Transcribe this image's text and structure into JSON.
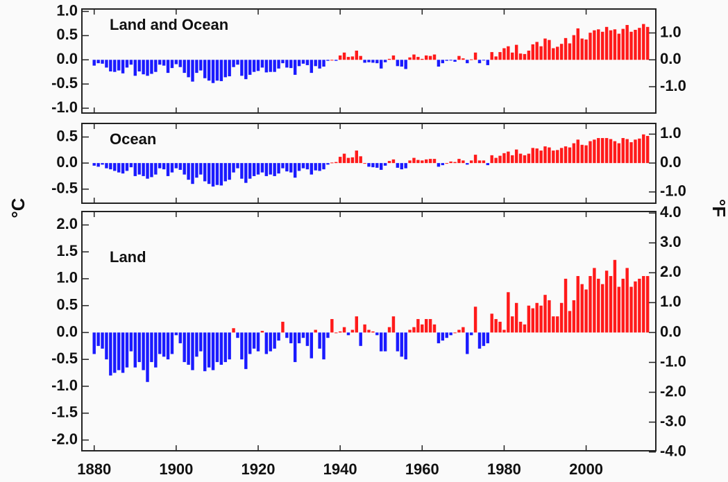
{
  "chart_data": [
    {
      "type": "bar",
      "label": "Land and Ocean",
      "x": [
        1880,
        1881,
        1882,
        1883,
        1884,
        1885,
        1886,
        1887,
        1888,
        1889,
        1890,
        1891,
        1892,
        1893,
        1894,
        1895,
        1896,
        1897,
        1898,
        1899,
        1900,
        1901,
        1902,
        1903,
        1904,
        1905,
        1906,
        1907,
        1908,
        1909,
        1910,
        1911,
        1912,
        1913,
        1914,
        1915,
        1916,
        1917,
        1918,
        1919,
        1920,
        1921,
        1922,
        1923,
        1924,
        1925,
        1926,
        1927,
        1928,
        1929,
        1930,
        1931,
        1932,
        1933,
        1934,
        1935,
        1936,
        1937,
        1938,
        1939,
        1940,
        1941,
        1942,
        1943,
        1944,
        1945,
        1946,
        1947,
        1948,
        1949,
        1950,
        1951,
        1952,
        1953,
        1954,
        1955,
        1956,
        1957,
        1958,
        1959,
        1960,
        1961,
        1962,
        1963,
        1964,
        1965,
        1966,
        1967,
        1968,
        1969,
        1970,
        1971,
        1972,
        1973,
        1974,
        1975,
        1976,
        1977,
        1978,
        1979,
        1980,
        1981,
        1982,
        1983,
        1984,
        1985,
        1986,
        1987,
        1988,
        1989,
        1990,
        1991,
        1992,
        1993,
        1994,
        1995,
        1996,
        1997,
        1998,
        1999,
        2000,
        2001,
        2002,
        2003,
        2004,
        2005,
        2006,
        2007,
        2008,
        2009,
        2010,
        2011,
        2012,
        2013,
        2014,
        2015
      ],
      "values": [
        -0.12,
        -0.07,
        -0.08,
        -0.16,
        -0.24,
        -0.25,
        -0.22,
        -0.28,
        -0.16,
        -0.1,
        -0.33,
        -0.24,
        -0.3,
        -0.33,
        -0.29,
        -0.25,
        -0.1,
        -0.12,
        -0.27,
        -0.17,
        -0.09,
        -0.15,
        -0.27,
        -0.36,
        -0.45,
        -0.27,
        -0.22,
        -0.38,
        -0.43,
        -0.48,
        -0.43,
        -0.44,
        -0.36,
        -0.34,
        -0.15,
        -0.1,
        -0.33,
        -0.4,
        -0.31,
        -0.25,
        -0.23,
        -0.16,
        -0.26,
        -0.25,
        -0.25,
        -0.18,
        -0.07,
        -0.16,
        -0.17,
        -0.31,
        -0.13,
        -0.08,
        -0.11,
        -0.27,
        -0.13,
        -0.18,
        -0.14,
        -0.02,
        0.0,
        -0.02,
        0.09,
        0.15,
        0.06,
        0.07,
        0.19,
        0.08,
        -0.06,
        -0.05,
        -0.06,
        -0.07,
        -0.18,
        -0.05,
        0.02,
        0.09,
        -0.13,
        -0.14,
        -0.19,
        0.05,
        0.11,
        0.06,
        0.02,
        0.09,
        0.08,
        0.11,
        -0.14,
        -0.07,
        -0.02,
        -0.01,
        -0.04,
        0.08,
        0.03,
        -0.07,
        0.01,
        0.15,
        -0.07,
        -0.01,
        -0.11,
        0.16,
        0.07,
        0.16,
        0.24,
        0.28,
        0.15,
        0.31,
        0.13,
        0.12,
        0.19,
        0.32,
        0.37,
        0.28,
        0.44,
        0.41,
        0.24,
        0.27,
        0.33,
        0.45,
        0.34,
        0.51,
        0.65,
        0.44,
        0.42,
        0.56,
        0.61,
        0.63,
        0.58,
        0.68,
        0.61,
        0.63,
        0.54,
        0.64,
        0.72,
        0.58,
        0.62,
        0.66,
        0.74,
        0.68
      ],
      "positive_color": "#ff1a1a",
      "negative_color": "#1a1aff",
      "xlim": [
        1877,
        2017
      ],
      "ylim": [
        -1.1,
        1.05
      ],
      "y2lim": [
        -1.98,
        1.89
      ],
      "yticks": [
        {
          "value": 1.0,
          "label": "1.0"
        },
        {
          "value": 0.5,
          "label": "0.5"
        },
        {
          "value": 0.0,
          "label": "0.0"
        },
        {
          "value": -0.5,
          "label": "-0.5"
        },
        {
          "value": -1.0,
          "label": "-1.0"
        }
      ],
      "y2ticks": [
        {
          "value": 1.0,
          "label": "1.0"
        },
        {
          "value": 0.0,
          "label": "0.0"
        },
        {
          "value": -1.0,
          "label": "-1.0"
        }
      ]
    },
    {
      "type": "bar",
      "label": "Ocean",
      "ylabel": "°C",
      "y2label": "°F",
      "x": [
        1880,
        1881,
        1882,
        1883,
        1884,
        1885,
        1886,
        1887,
        1888,
        1889,
        1890,
        1891,
        1892,
        1893,
        1894,
        1895,
        1896,
        1897,
        1898,
        1899,
        1900,
        1901,
        1902,
        1903,
        1904,
        1905,
        1906,
        1907,
        1908,
        1909,
        1910,
        1911,
        1912,
        1913,
        1914,
        1915,
        1916,
        1917,
        1918,
        1919,
        1920,
        1921,
        1922,
        1923,
        1924,
        1925,
        1926,
        1927,
        1928,
        1929,
        1930,
        1931,
        1932,
        1933,
        1934,
        1935,
        1936,
        1937,
        1938,
        1939,
        1940,
        1941,
        1942,
        1943,
        1944,
        1945,
        1946,
        1947,
        1948,
        1949,
        1950,
        1951,
        1952,
        1953,
        1954,
        1955,
        1956,
        1957,
        1958,
        1959,
        1960,
        1961,
        1962,
        1963,
        1964,
        1965,
        1966,
        1967,
        1968,
        1969,
        1970,
        1971,
        1972,
        1973,
        1974,
        1975,
        1976,
        1977,
        1978,
        1979,
        1980,
        1981,
        1982,
        1983,
        1984,
        1985,
        1986,
        1987,
        1988,
        1989,
        1990,
        1991,
        1992,
        1993,
        1994,
        1995,
        1996,
        1997,
        1998,
        1999,
        2000,
        2001,
        2002,
        2003,
        2004,
        2005,
        2006,
        2007,
        2008,
        2009,
        2010,
        2011,
        2012,
        2013,
        2014,
        2015
      ],
      "values": [
        -0.05,
        -0.07,
        -0.03,
        -0.1,
        -0.12,
        -0.15,
        -0.18,
        -0.2,
        -0.15,
        -0.08,
        -0.25,
        -0.22,
        -0.25,
        -0.3,
        -0.27,
        -0.22,
        -0.1,
        -0.12,
        -0.25,
        -0.18,
        -0.1,
        -0.13,
        -0.22,
        -0.32,
        -0.4,
        -0.28,
        -0.22,
        -0.35,
        -0.4,
        -0.45,
        -0.42,
        -0.43,
        -0.35,
        -0.32,
        -0.18,
        -0.1,
        -0.3,
        -0.38,
        -0.3,
        -0.25,
        -0.22,
        -0.18,
        -0.25,
        -0.22,
        -0.25,
        -0.2,
        -0.1,
        -0.16,
        -0.18,
        -0.28,
        -0.15,
        -0.1,
        -0.12,
        -0.22,
        -0.14,
        -0.15,
        -0.12,
        -0.03,
        0.01,
        0.02,
        0.12,
        0.18,
        0.1,
        0.11,
        0.24,
        0.13,
        0.0,
        -0.07,
        -0.08,
        -0.09,
        -0.13,
        -0.05,
        0.04,
        0.07,
        -0.09,
        -0.12,
        -0.1,
        0.05,
        0.1,
        0.06,
        0.05,
        0.07,
        0.08,
        0.08,
        -0.07,
        -0.04,
        0.0,
        0.03,
        0.02,
        0.08,
        0.05,
        -0.03,
        0.05,
        0.16,
        0.05,
        0.05,
        -0.04,
        0.15,
        0.1,
        0.14,
        0.19,
        0.22,
        0.15,
        0.26,
        0.18,
        0.15,
        0.18,
        0.29,
        0.28,
        0.24,
        0.32,
        0.3,
        0.24,
        0.25,
        0.29,
        0.32,
        0.3,
        0.38,
        0.45,
        0.35,
        0.34,
        0.42,
        0.45,
        0.48,
        0.48,
        0.48,
        0.46,
        0.42,
        0.38,
        0.48,
        0.46,
        0.4,
        0.45,
        0.47,
        0.55,
        0.52
      ],
      "positive_color": "#ff1a1a",
      "negative_color": "#1a1aff",
      "xlim": [
        1877,
        2017
      ],
      "ylim": [
        -0.77,
        0.76
      ],
      "y2lim": [
        -1.39,
        1.37
      ],
      "yticks": [
        {
          "value": 0.5,
          "label": "0.5"
        },
        {
          "value": 0.0,
          "label": "0.0"
        },
        {
          "value": -0.5,
          "label": "-0.5"
        }
      ],
      "y2ticks": [
        {
          "value": 1.0,
          "label": "1.0"
        },
        {
          "value": 0.0,
          "label": "0.0"
        },
        {
          "value": -1.0,
          "label": "-1.0"
        }
      ]
    },
    {
      "type": "bar",
      "label": "Land",
      "x": [
        1880,
        1881,
        1882,
        1883,
        1884,
        1885,
        1886,
        1887,
        1888,
        1889,
        1890,
        1891,
        1892,
        1893,
        1894,
        1895,
        1896,
        1897,
        1898,
        1899,
        1900,
        1901,
        1902,
        1903,
        1904,
        1905,
        1906,
        1907,
        1908,
        1909,
        1910,
        1911,
        1912,
        1913,
        1914,
        1915,
        1916,
        1917,
        1918,
        1919,
        1920,
        1921,
        1922,
        1923,
        1924,
        1925,
        1926,
        1927,
        1928,
        1929,
        1930,
        1931,
        1932,
        1933,
        1934,
        1935,
        1936,
        1937,
        1938,
        1939,
        1940,
        1941,
        1942,
        1943,
        1944,
        1945,
        1946,
        1947,
        1948,
        1949,
        1950,
        1951,
        1952,
        1953,
        1954,
        1955,
        1956,
        1957,
        1958,
        1959,
        1960,
        1961,
        1962,
        1963,
        1964,
        1965,
        1966,
        1967,
        1968,
        1969,
        1970,
        1971,
        1972,
        1973,
        1974,
        1975,
        1976,
        1977,
        1978,
        1979,
        1980,
        1981,
        1982,
        1983,
        1984,
        1985,
        1986,
        1987,
        1988,
        1989,
        1990,
        1991,
        1992,
        1993,
        1994,
        1995,
        1996,
        1997,
        1998,
        1999,
        2000,
        2001,
        2002,
        2003,
        2004,
        2005,
        2006,
        2007,
        2008,
        2009,
        2010,
        2011,
        2012,
        2013,
        2014,
        2015
      ],
      "values": [
        -0.4,
        -0.25,
        -0.3,
        -0.5,
        -0.8,
        -0.75,
        -0.7,
        -0.75,
        -0.65,
        -0.35,
        -0.65,
        -0.55,
        -0.7,
        -0.92,
        -0.55,
        -0.65,
        -0.4,
        -0.45,
        -0.5,
        -0.4,
        -0.05,
        -0.2,
        -0.55,
        -0.6,
        -0.7,
        -0.45,
        -0.35,
        -0.72,
        -0.65,
        -0.7,
        -0.55,
        -0.6,
        -0.55,
        -0.5,
        0.08,
        -0.1,
        -0.5,
        -0.68,
        -0.4,
        -0.3,
        -0.35,
        0.03,
        -0.4,
        -0.35,
        -0.3,
        -0.15,
        0.2,
        -0.1,
        -0.2,
        -0.55,
        -0.2,
        -0.1,
        -0.25,
        -0.48,
        0.05,
        -0.3,
        -0.5,
        -0.1,
        0.25,
        0.0,
        0.02,
        0.1,
        -0.05,
        0.05,
        0.3,
        -0.25,
        0.15,
        0.05,
        0.02,
        -0.05,
        -0.35,
        -0.35,
        0.1,
        0.3,
        -0.35,
        -0.45,
        -0.5,
        0.05,
        0.1,
        0.25,
        0.15,
        0.25,
        0.25,
        0.15,
        -0.2,
        -0.15,
        -0.1,
        -0.05,
        0.0,
        0.05,
        0.1,
        -0.4,
        -0.05,
        0.48,
        -0.3,
        -0.25,
        -0.2,
        0.35,
        0.25,
        0.2,
        0.05,
        0.75,
        0.3,
        0.55,
        0.2,
        0.15,
        0.5,
        0.45,
        0.55,
        0.5,
        0.7,
        0.6,
        0.3,
        0.3,
        0.55,
        1.0,
        0.4,
        0.6,
        1.05,
        0.9,
        0.8,
        1.05,
        1.2,
        1.0,
        0.9,
        1.15,
        1.05,
        1.35,
        0.85,
        1.0,
        1.2,
        0.85,
        0.95,
        1.0,
        1.05,
        1.05
      ],
      "positive_color": "#ff1a1a",
      "negative_color": "#1a1aff",
      "xlim": [
        1877,
        2017
      ],
      "ylim": [
        -2.2,
        2.25
      ],
      "y2lim": [
        -3.96,
        4.05
      ],
      "xticks": [
        1880,
        1900,
        1920,
        1940,
        1960,
        1980,
        2000
      ],
      "yticks": [
        {
          "value": 2.0,
          "label": "2.0"
        },
        {
          "value": 1.5,
          "label": "1.5"
        },
        {
          "value": 1.0,
          "label": "1.0"
        },
        {
          "value": 0.5,
          "label": "0.5"
        },
        {
          "value": 0.0,
          "label": "0.0"
        },
        {
          "value": -0.5,
          "label": "-0.5"
        },
        {
          "value": -1.0,
          "label": "-1.0"
        },
        {
          "value": -1.5,
          "label": "-1.5"
        },
        {
          "value": -2.0,
          "label": "-2.0"
        }
      ],
      "y2ticks": [
        {
          "value": 4.0,
          "label": "4.0"
        },
        {
          "value": 3.0,
          "label": "3.0"
        },
        {
          "value": 2.0,
          "label": "2.0"
        },
        {
          "value": 1.0,
          "label": "1.0"
        },
        {
          "value": 0.0,
          "label": "0.0"
        },
        {
          "value": -1.0,
          "label": "-1.0"
        },
        {
          "value": -2.0,
          "label": "-2.0"
        },
        {
          "value": -3.0,
          "label": "-3.0"
        },
        {
          "value": -4.0,
          "label": "-4.0"
        }
      ]
    }
  ]
}
